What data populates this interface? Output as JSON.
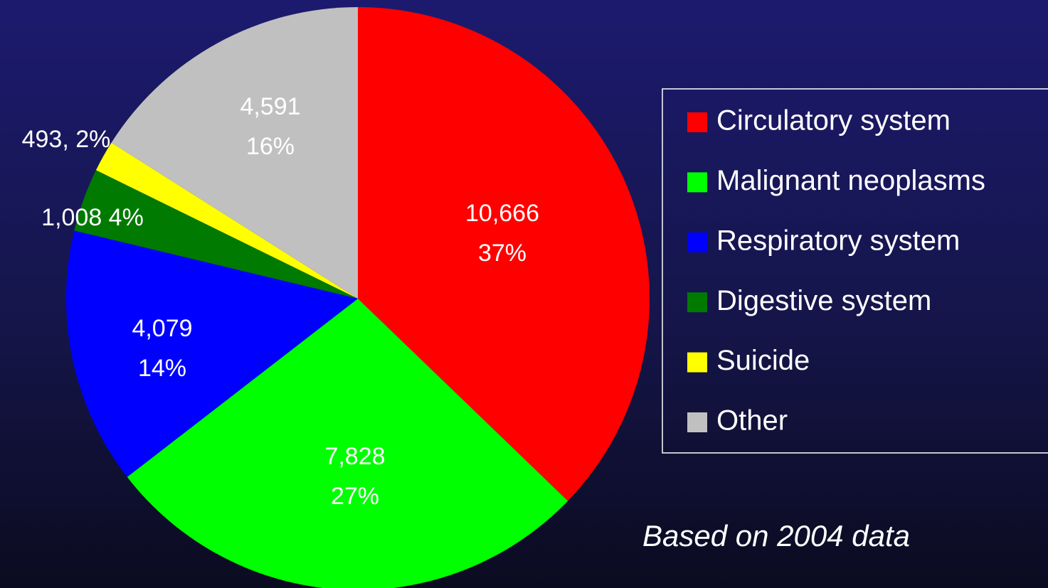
{
  "chart_data": {
    "type": "pie",
    "categories": [
      "Circulatory system",
      "Malignant neoplasms",
      "Respiratory system",
      "Digestive system",
      "Suicide",
      "Other"
    ],
    "values": [
      10666,
      7828,
      4079,
      1008,
      493,
      4591
    ],
    "value_labels": [
      "10,666\n37%",
      "7,828\n27%",
      "4,079\n14%",
      "1,008 4%",
      "493, 2%",
      "4,591\n16%"
    ],
    "colors": [
      "#ff0000",
      "#00ff00",
      "#0000ff",
      "#007a00",
      "#ffff00",
      "#c0c0c0"
    ],
    "legend": "right",
    "annotation": "Based on 2004 data"
  }
}
